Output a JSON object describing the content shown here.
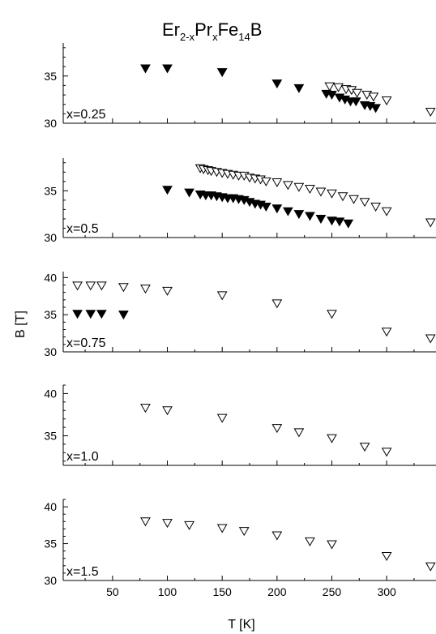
{
  "title": {
    "base1": "Er",
    "sub1": "2-x",
    "base2": "Pr",
    "sub2": "x",
    "base3": "Fe",
    "sub3": "14",
    "base4": "B"
  },
  "chart_data": {
    "type": "scatter",
    "xlabel": "T [K]",
    "ylabel": "B [T]",
    "xlim": [
      5,
      345
    ],
    "xticks": [
      50,
      100,
      150,
      200,
      250,
      300
    ],
    "marker_open": "open-down-triangle",
    "marker_filled": "filled-down-triangle",
    "panels": [
      {
        "label": "x=0.25",
        "ylim": [
          30,
          38.5
        ],
        "yticks": [
          30,
          35
        ],
        "series": [
          {
            "marker": "filled",
            "x": [
              80,
              100,
              150,
              200,
              220,
              245,
              250,
              257,
              262,
              267,
              272,
              280,
              285,
              290
            ],
            "y": [
              35.8,
              35.8,
              35.4,
              34.2,
              33.7,
              33.1,
              33.0,
              32.7,
              32.5,
              32.3,
              32.3,
              31.9,
              31.8,
              31.6
            ]
          },
          {
            "marker": "open",
            "x": [
              248,
              256,
              263,
              268,
              273,
              282,
              288,
              300,
              340
            ],
            "y": [
              33.9,
              33.8,
              33.6,
              33.5,
              33.2,
              33.0,
              32.8,
              32.4,
              31.2
            ]
          }
        ]
      },
      {
        "label": "x=0.5",
        "ylim": [
          30,
          38.5
        ],
        "yticks": [
          30,
          35
        ],
        "series": [
          {
            "marker": "filled",
            "x": [
              100,
              120,
              130,
              135,
              140,
              145,
              150,
              155,
              160,
              165,
              170,
              175,
              180,
              185,
              190,
              200,
              210,
              220,
              230,
              240,
              250,
              257,
              265
            ],
            "y": [
              35.1,
              34.8,
              34.6,
              34.5,
              34.5,
              34.4,
              34.3,
              34.2,
              34.2,
              34.1,
              34.0,
              33.8,
              33.6,
              33.5,
              33.3,
              33.1,
              32.8,
              32.5,
              32.3,
              32.0,
              31.8,
              31.7,
              31.5
            ]
          },
          {
            "marker": "open",
            "x": [
              130,
              133,
              137,
              140,
              145,
              150,
              155,
              160,
              165,
              170,
              175,
              180,
              185,
              190,
              200,
              210,
              220,
              230,
              240,
              250,
              260,
              270,
              280,
              290,
              300,
              340
            ],
            "y": [
              37.4,
              37.3,
              37.2,
              37.1,
              37.0,
              36.9,
              36.8,
              36.7,
              36.6,
              36.6,
              36.4,
              36.3,
              36.2,
              36.0,
              35.9,
              35.6,
              35.4,
              35.2,
              34.9,
              34.7,
              34.4,
              34.1,
              33.8,
              33.3,
              32.8,
              31.6
            ]
          }
        ]
      },
      {
        "label": "x=0.75",
        "ylim": [
          30,
          40.8
        ],
        "yticks": [
          30,
          35,
          40
        ],
        "series": [
          {
            "marker": "filled",
            "x": [
              18,
              30,
              40,
              60
            ],
            "y": [
              35.1,
              35.1,
              35.1,
              35.0
            ]
          },
          {
            "marker": "open",
            "x": [
              18,
              30,
              40,
              60,
              80,
              100,
              150,
              200,
              250,
              300,
              340
            ],
            "y": [
              38.9,
              38.9,
              38.9,
              38.7,
              38.5,
              38.2,
              37.6,
              36.5,
              35.1,
              32.7,
              31.8
            ]
          }
        ]
      },
      {
        "label": "x=1.0",
        "ylim": [
          31.5,
          41
        ],
        "yticks": [
          35,
          40
        ],
        "series": [
          {
            "marker": "open",
            "x": [
              80,
              100,
              150,
              200,
              220,
              250,
              280,
              300
            ],
            "y": [
              38.3,
              38.0,
              37.1,
              35.9,
              35.4,
              34.7,
              33.7,
              33.1
            ]
          }
        ]
      },
      {
        "label": "x=1.5",
        "ylim": [
          30,
          41
        ],
        "yticks": [
          30,
          35,
          40
        ],
        "series": [
          {
            "marker": "open",
            "x": [
              80,
              100,
              120,
              150,
              170,
              200,
              230,
              250,
              300,
              340
            ],
            "y": [
              38.0,
              37.8,
              37.5,
              37.1,
              36.7,
              36.1,
              35.3,
              34.9,
              33.3,
              31.9
            ]
          }
        ]
      }
    ]
  }
}
